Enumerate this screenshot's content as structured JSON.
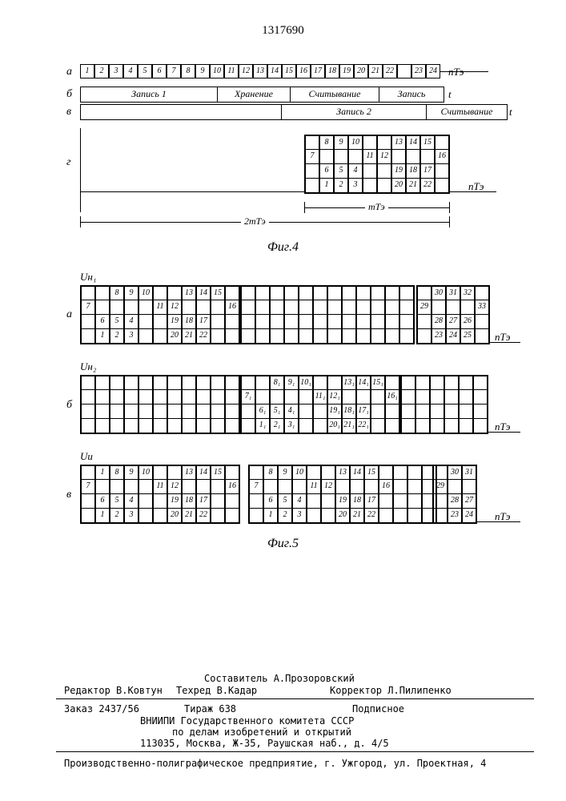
{
  "doc_number": "1317690",
  "fig4": {
    "label": "Фиг.4",
    "rows": {
      "a": {
        "letter": "а",
        "cells": [
          "1",
          "2",
          "3",
          "4",
          "5",
          "6",
          "7",
          "8",
          "9",
          "10",
          "11",
          "12",
          "13",
          "14",
          "15",
          "16",
          "17",
          "18",
          "19",
          "20",
          "21",
          "22",
          "",
          "23",
          "24"
        ],
        "axis": "nТэ"
      },
      "b": {
        "letter": "б",
        "phases": [
          "Запись 1",
          "Хранение",
          "Считывание",
          "Запись"
        ],
        "widths": [
          170,
          90,
          110,
          80
        ],
        "axis": "t"
      },
      "v": {
        "letter": "в",
        "phases": [
          "",
          "Запись 2",
          "Считывание"
        ],
        "widths": [
          250,
          180,
          100
        ],
        "axis": "t"
      },
      "g": {
        "letter": "г",
        "grid": [
          [
            "",
            "8",
            "9",
            "10",
            "",
            "",
            "13",
            "14",
            "15",
            ""
          ],
          [
            "7",
            "",
            "",
            "",
            "11",
            "12",
            "",
            "",
            "",
            "16"
          ],
          [
            "",
            "6",
            "5",
            "4",
            "",
            "",
            "19",
            "18",
            "17",
            ""
          ],
          [
            "",
            "1",
            "2",
            "3",
            "",
            "",
            "20",
            "21",
            "22",
            ""
          ]
        ],
        "axis": "nТэ"
      }
    },
    "dim_inner": "mТэ",
    "dim_outer": "2mТэ"
  },
  "fig5": {
    "label": "Фиг.5",
    "blocks": {
      "a": {
        "letter": "а",
        "signal": "Uн₁",
        "left": [
          [
            "",
            "",
            "8",
            "9",
            "10",
            "",
            "",
            "13",
            "14",
            "15",
            ""
          ],
          [
            "7",
            "",
            "",
            "",
            "",
            "11",
            "12",
            "",
            "",
            "",
            "16"
          ],
          [
            "",
            "6",
            "5",
            "4",
            "",
            "",
            "19",
            "18",
            "17",
            "",
            ""
          ],
          [
            "",
            "1",
            "2",
            "3",
            "",
            "",
            "20",
            "21",
            "22",
            "",
            ""
          ]
        ],
        "right": [
          [
            "",
            "30",
            "31",
            "32",
            ""
          ],
          [
            "29",
            "",
            "",
            "",
            "33"
          ],
          [
            "",
            "28",
            "27",
            "26",
            ""
          ],
          [
            "",
            "23",
            "24",
            "25",
            ""
          ]
        ],
        "axis": "nТэ"
      },
      "b": {
        "letter": "б",
        "signal": "Uн₂",
        "left_blank_cols": 11,
        "mid": [
          [
            "",
            "",
            "8₁",
            "9₁",
            "10₁",
            "",
            "",
            "13₁",
            "14₁",
            "15₁",
            ""
          ],
          [
            "7₁",
            "",
            "",
            "",
            "",
            "11₁",
            "12₁",
            "",
            "",
            "",
            "16₁"
          ],
          [
            "",
            "6₁",
            "5₁",
            "4₁",
            "",
            "",
            "19₁",
            "18₁",
            "17₁",
            "",
            ""
          ],
          [
            "",
            "1₁",
            "2₁",
            "3₁",
            "",
            "",
            "20₁",
            "21₁",
            "22₁",
            "",
            ""
          ]
        ],
        "axis": "nТэ"
      },
      "v": {
        "letter": "в",
        "signal": "Uи",
        "left": [
          [
            "",
            "1",
            "8",
            "9",
            "10",
            "",
            "",
            "13",
            "14",
            "15",
            ""
          ],
          [
            "7",
            "",
            "",
            "",
            "",
            "11",
            "12",
            "",
            "",
            "",
            "16"
          ],
          [
            "",
            "6",
            "5",
            "4",
            "",
            "",
            "19",
            "18",
            "17",
            "",
            ""
          ],
          [
            "",
            "1",
            "2",
            "3",
            "",
            "",
            "20",
            "21",
            "22",
            "",
            ""
          ]
        ],
        "mid": [
          [
            "",
            "8",
            "9",
            "10",
            "",
            "",
            "13",
            "14",
            "15",
            ""
          ],
          [
            "7",
            "",
            "",
            "",
            "11",
            "12",
            "",
            "",
            "",
            "16"
          ],
          [
            "",
            "6",
            "5",
            "4",
            "",
            "",
            "19",
            "18",
            "17",
            ""
          ],
          [
            "",
            "1",
            "2",
            "3",
            "",
            "",
            "20",
            "21",
            "22",
            ""
          ]
        ],
        "right": [
          [
            "",
            "30",
            "31"
          ],
          [
            "29",
            "",
            ""
          ],
          [
            "",
            "28",
            "27"
          ],
          [
            "",
            "23",
            "24"
          ]
        ],
        "axis": "nТэ"
      }
    }
  },
  "credits": {
    "compiler": "Составитель А.Прозоровский",
    "editor": "Редактор В.Ковтун",
    "techred": "Техред В.Кадар",
    "corrector": "Корректор Л.Пилипенко",
    "order": "Заказ 2437/56",
    "tirazh": "Тираж 638",
    "sign": "Подписное",
    "org1": "ВНИИПИ Государственного комитета СССР",
    "org2": "по делам изобретений и открытий",
    "addr": "113035, Москва, Ж-35, Раушская наб., д. 4/5",
    "print": "Производственно-полиграфическое предприятие, г. Ужгород, ул. Проектная, 4"
  }
}
